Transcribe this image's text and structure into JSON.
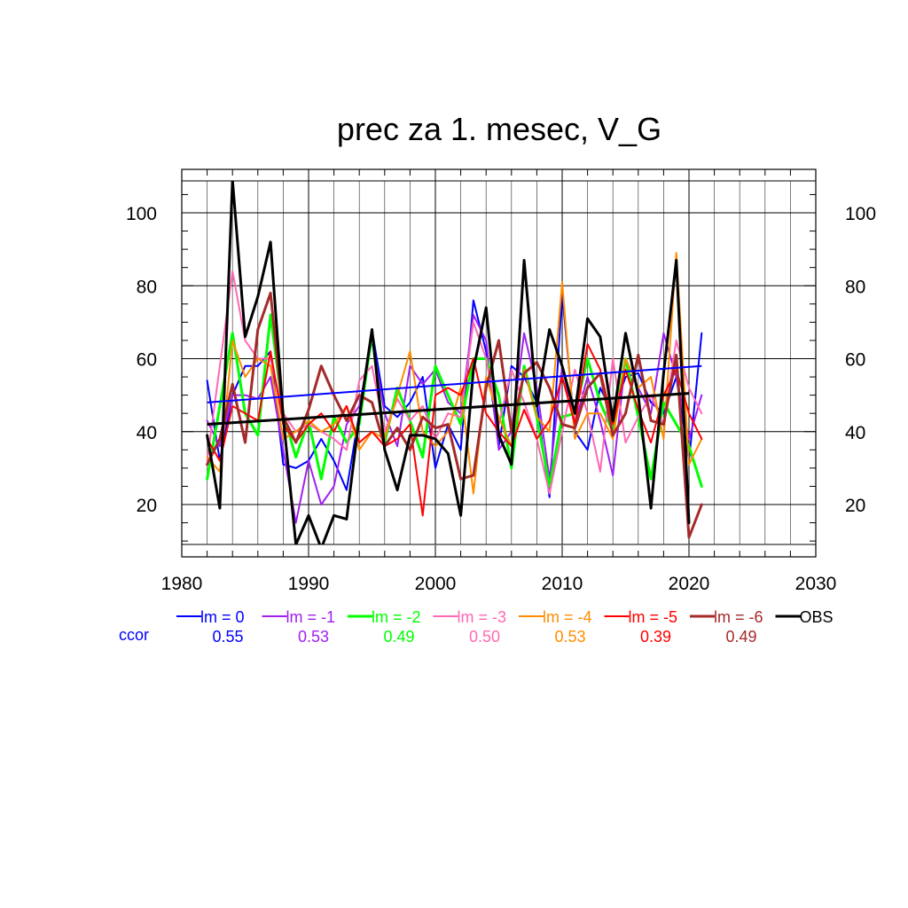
{
  "chart_data": {
    "type": "line",
    "title": "prec za 1. mesec, V_G",
    "xlim": [
      1980,
      2030
    ],
    "ylim": [
      8,
      109
    ],
    "x_ticks": [
      1980,
      1990,
      2000,
      2010,
      2020,
      2030
    ],
    "y_ticks": [
      20,
      40,
      60,
      80,
      100
    ],
    "grid": true,
    "legend_placement": "bottom",
    "ccor_label": "ccor",
    "x": [
      1982,
      1983,
      1984,
      1985,
      1986,
      1987,
      1988,
      1989,
      1990,
      1991,
      1992,
      1993,
      1994,
      1995,
      1996,
      1997,
      1998,
      1999,
      2000,
      2001,
      2002,
      2003,
      2004,
      2005,
      2006,
      2007,
      2008,
      2009,
      2010,
      2011,
      2012,
      2013,
      2014,
      2015,
      2016,
      2017,
      2018,
      2019,
      2020,
      2021
    ],
    "series": [
      {
        "name": "lm = 0",
        "color": "#0000ff",
        "width": 2,
        "ccor": "0.55",
        "values": [
          54,
          32,
          50,
          58,
          58,
          62,
          31,
          30,
          32,
          38,
          32,
          24,
          45,
          68,
          47,
          44,
          48,
          55,
          30,
          42,
          35,
          76,
          62,
          36,
          58,
          55,
          48,
          22,
          78,
          40,
          35,
          52,
          45,
          55,
          56,
          48,
          45,
          55,
          32,
          67
        ]
      },
      {
        "name": "lm = -1",
        "color": "#a020f0",
        "width": 2,
        "ccor": "0.53",
        "values": [
          43,
          36,
          50,
          50,
          49,
          55,
          35,
          15,
          32,
          20,
          25,
          42,
          47,
          65,
          45,
          36,
          58,
          53,
          57,
          48,
          45,
          72,
          65,
          35,
          40,
          67,
          52,
          27,
          58,
          42,
          55,
          43,
          28,
          60,
          52,
          45,
          67,
          55,
          38,
          50
        ]
      },
      {
        "name": "lm = -2",
        "color": "#00ff00",
        "width": 3,
        "ccor": "0.49",
        "values": [
          27,
          47,
          67,
          45,
          39,
          72,
          45,
          33,
          43,
          27,
          44,
          37,
          42,
          67,
          37,
          52,
          43,
          33,
          58,
          50,
          42,
          60,
          60,
          50,
          30,
          58,
          44,
          25,
          44,
          45,
          60,
          48,
          40,
          60,
          44,
          27,
          48,
          42,
          36,
          25
        ]
      },
      {
        "name": "lm = -3",
        "color": "#ff69b4",
        "width": 2,
        "ccor": "0.50",
        "values": [
          32,
          58,
          84,
          65,
          60,
          60,
          45,
          40,
          42,
          40,
          38,
          35,
          54,
          58,
          40,
          49,
          43,
          47,
          38,
          45,
          44,
          70,
          60,
          42,
          57,
          48,
          38,
          23,
          40,
          57,
          45,
          29,
          60,
          37,
          44,
          50,
          42,
          65,
          52,
          45
        ]
      },
      {
        "name": "lm = -4",
        "color": "#ff8c00",
        "width": 2,
        "ccor": "0.53",
        "values": [
          33,
          29,
          65,
          55,
          60,
          58,
          38,
          40,
          43,
          40,
          42,
          47,
          35,
          40,
          38,
          50,
          62,
          40,
          36,
          40,
          52,
          23,
          55,
          44,
          36,
          57,
          44,
          40,
          81,
          38,
          45,
          45,
          38,
          60,
          52,
          55,
          38,
          89,
          31,
          38
        ]
      },
      {
        "name": "lm = -5",
        "color": "#ff0000",
        "width": 2,
        "ccor": "0.39",
        "values": [
          38,
          32,
          47,
          45,
          43,
          62,
          42,
          37,
          42,
          45,
          40,
          47,
          37,
          40,
          36,
          38,
          42,
          17,
          50,
          52,
          50,
          60,
          45,
          40,
          36,
          46,
          38,
          43,
          55,
          42,
          64,
          57,
          42,
          57,
          46,
          37,
          50,
          57,
          45,
          38
        ]
      },
      {
        "name": "lm = -6",
        "color": "#a52a2a",
        "width": 3,
        "ccor": "0.49",
        "values": [
          31,
          38,
          53,
          37,
          68,
          78,
          44,
          37,
          46,
          58,
          50,
          43,
          50,
          48,
          36,
          41,
          35,
          44,
          41,
          42,
          27,
          28,
          52,
          65,
          40,
          56,
          59,
          52,
          42,
          41,
          52,
          56,
          39,
          45,
          61,
          43,
          42,
          61,
          11,
          20
        ]
      },
      {
        "name": "OBS",
        "color": "#000000",
        "width": 3,
        "ccor": "",
        "values": [
          39,
          19,
          109,
          66,
          77,
          92,
          44,
          9,
          17,
          8,
          17,
          16,
          44,
          68,
          35,
          24,
          39,
          39,
          38,
          34,
          17,
          57,
          74,
          39,
          31,
          87,
          47,
          68,
          58,
          45,
          71,
          66,
          43,
          67,
          50,
          19,
          56,
          87,
          15,
          null
        ]
      }
    ],
    "trend_lines": [
      {
        "color": "#0000ff",
        "width": 2,
        "x": [
          1982,
          2021
        ],
        "y": [
          48,
          58
        ]
      },
      {
        "color": "#000000",
        "width": 3,
        "x": [
          1982,
          2020
        ],
        "y": [
          42,
          50.5
        ]
      }
    ]
  }
}
